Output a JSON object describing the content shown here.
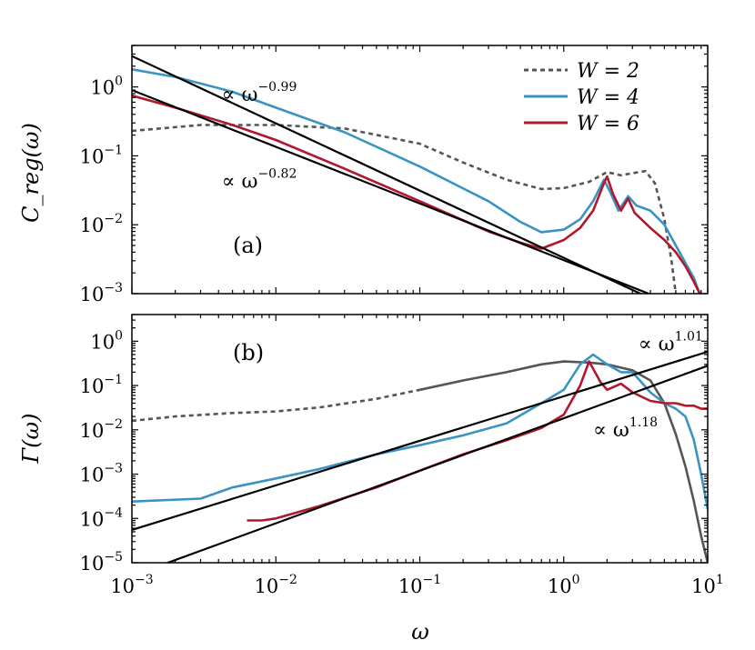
{
  "chart_data": [
    {
      "type": "line",
      "panel_label": "(a)",
      "ylabel": "C_reg(ω)",
      "xlabel": "",
      "xscale": "log",
      "yscale": "log",
      "xlim": [
        0.001,
        10
      ],
      "ylim": [
        0.001,
        4
      ],
      "x_ticks": [
        {
          "base": "10",
          "exp": "−3"
        },
        {
          "base": "10",
          "exp": "−2"
        },
        {
          "base": "10",
          "exp": "−1"
        },
        {
          "base": "10",
          "exp": "0"
        },
        {
          "base": "10",
          "exp": "1"
        }
      ],
      "y_ticks": [
        {
          "base": "10",
          "exp": "0"
        },
        {
          "base": "10",
          "exp": "−1"
        },
        {
          "base": "10",
          "exp": "−2"
        },
        {
          "base": "10",
          "exp": "−3"
        }
      ],
      "legend": {
        "placement": "top-right",
        "entries": [
          {
            "label": "W = 2",
            "color": "#555555",
            "style": "dashed"
          },
          {
            "label": "W = 4",
            "color": "#3a93c3",
            "style": "solid"
          },
          {
            "label": "W = 6",
            "color": "#b2182b",
            "style": "solid"
          }
        ]
      },
      "series": [
        {
          "name": "W = 2",
          "color": "#555555",
          "style": "dashed",
          "x": [
            0.001,
            0.003,
            0.01,
            0.03,
            0.1,
            0.2,
            0.4,
            0.7,
            1.0,
            1.5,
            2.0,
            2.5,
            3.0,
            3.7,
            4.3,
            5.0,
            5.6,
            6.0
          ],
          "y": [
            0.23,
            0.28,
            0.28,
            0.25,
            0.15,
            0.08,
            0.045,
            0.033,
            0.034,
            0.042,
            0.058,
            0.052,
            0.056,
            0.06,
            0.04,
            0.012,
            0.003,
            0.001
          ]
        },
        {
          "name": "W = 4",
          "color": "#3a93c3",
          "style": "solid",
          "x": [
            0.001,
            0.002,
            0.005,
            0.01,
            0.03,
            0.1,
            0.3,
            0.5,
            0.7,
            1.0,
            1.3,
            1.6,
            1.9,
            2.1,
            2.4,
            2.8,
            3.2,
            4.0,
            5.0,
            6.0,
            7.0,
            8.0,
            8.8
          ],
          "y": [
            1.8,
            1.4,
            0.85,
            0.5,
            0.22,
            0.07,
            0.022,
            0.011,
            0.0078,
            0.0085,
            0.012,
            0.022,
            0.045,
            0.03,
            0.016,
            0.026,
            0.019,
            0.016,
            0.01,
            0.005,
            0.0028,
            0.0017,
            0.001
          ]
        },
        {
          "name": "W = 6",
          "color": "#b2182b",
          "style": "solid",
          "x": [
            0.001,
            0.002,
            0.005,
            0.01,
            0.03,
            0.1,
            0.3,
            0.5,
            0.7,
            1.0,
            1.3,
            1.6,
            1.9,
            2.0,
            2.2,
            2.5,
            2.8,
            3.1,
            4.0,
            5.0,
            6.0,
            7.0,
            8.0,
            8.8
          ],
          "y": [
            0.75,
            0.5,
            0.28,
            0.17,
            0.065,
            0.022,
            0.008,
            0.0055,
            0.0045,
            0.006,
            0.009,
            0.016,
            0.04,
            0.05,
            0.028,
            0.016,
            0.024,
            0.015,
            0.009,
            0.006,
            0.004,
            0.0025,
            0.0015,
            0.001
          ]
        },
        {
          "name": "",
          "color": "#000000",
          "style": "solid",
          "fit": true,
          "x": [
            0.001,
            10
          ],
          "y": [
            2.8,
            0.00035
          ]
        },
        {
          "name": "",
          "color": "#000000",
          "style": "solid",
          "fit": true,
          "x": [
            0.001,
            10
          ],
          "y": [
            0.9,
            0.00046
          ]
        }
      ],
      "annotations": [
        {
          "text": "∝ ω",
          "exp": "−0.99",
          "x": 0.0042,
          "y": 0.8
        },
        {
          "text": "∝ ω",
          "exp": "−0.82",
          "x": 0.0042,
          "y": 0.044
        }
      ]
    },
    {
      "type": "line",
      "panel_label": "(b)",
      "ylabel": "Γ(ω)",
      "xlabel": "ω",
      "xscale": "log",
      "yscale": "log",
      "xlim": [
        0.001,
        10
      ],
      "ylim": [
        1e-05,
        4
      ],
      "x_ticks": [
        {
          "base": "10",
          "exp": "−3"
        },
        {
          "base": "10",
          "exp": "−2"
        },
        {
          "base": "10",
          "exp": "−1"
        },
        {
          "base": "10",
          "exp": "0"
        },
        {
          "base": "10",
          "exp": "1"
        }
      ],
      "y_ticks": [
        {
          "base": "10",
          "exp": "0"
        },
        {
          "base": "10",
          "exp": "−1"
        },
        {
          "base": "10",
          "exp": "−2"
        },
        {
          "base": "10",
          "exp": "−3"
        },
        {
          "base": "10",
          "exp": "−4"
        },
        {
          "base": "10",
          "exp": "−5"
        }
      ],
      "series": [
        {
          "name": "W = 2",
          "color": "#555555",
          "style": "dashed-to-solid",
          "x": [
            0.001,
            0.002,
            0.005,
            0.01,
            0.02,
            0.05,
            0.1,
            0.2,
            0.4,
            0.7,
            1.0,
            1.5,
            2.0,
            3.0,
            4.0,
            5.0,
            6.0,
            7.0,
            8.0,
            9.0,
            10.0
          ],
          "y": [
            0.016,
            0.02,
            0.024,
            0.026,
            0.032,
            0.05,
            0.08,
            0.13,
            0.2,
            0.3,
            0.35,
            0.33,
            0.3,
            0.22,
            0.13,
            0.04,
            0.008,
            0.0015,
            0.00025,
            4e-05,
            1e-05
          ]
        },
        {
          "name": "W = 4",
          "color": "#3a93c3",
          "style": "solid",
          "x": [
            0.001,
            0.003,
            0.005,
            0.01,
            0.02,
            0.05,
            0.1,
            0.2,
            0.4,
            0.7,
            1.0,
            1.3,
            1.6,
            2.0,
            2.5,
            3.0,
            4.0,
            5.0,
            6.0,
            7.0,
            8.0,
            9.0,
            10.0
          ],
          "y": [
            0.00024,
            0.00028,
            0.0005,
            0.0008,
            0.0013,
            0.0028,
            0.0045,
            0.0075,
            0.014,
            0.04,
            0.08,
            0.3,
            0.5,
            0.3,
            0.2,
            0.2,
            0.07,
            0.04,
            0.03,
            0.02,
            0.006,
            0.001,
            0.00016
          ]
        },
        {
          "name": "W = 6",
          "color": "#b2182b",
          "style": "solid",
          "x": [
            0.0063,
            0.008,
            0.01,
            0.02,
            0.05,
            0.1,
            0.2,
            0.4,
            0.7,
            1.0,
            1.3,
            1.5,
            1.8,
            2.0,
            2.5,
            3.0,
            4.0,
            5.0,
            6.0,
            7.0,
            8.0,
            9.0,
            10.0
          ],
          "y": [
            9e-05,
            9e-05,
            0.0001,
            0.00019,
            0.0005,
            0.0012,
            0.0028,
            0.0058,
            0.011,
            0.022,
            0.1,
            0.35,
            0.12,
            0.08,
            0.11,
            0.07,
            0.045,
            0.04,
            0.04,
            0.035,
            0.035,
            0.03,
            0.03
          ]
        },
        {
          "name": "",
          "color": "#000000",
          "style": "solid",
          "fit": true,
          "x": [
            0.001,
            10
          ],
          "y": [
            5.5e-05,
            0.58
          ]
        },
        {
          "name": "",
          "color": "#000000",
          "style": "solid",
          "fit": true,
          "x": [
            0.0017,
            10
          ],
          "y": [
            9.5e-06,
            0.28
          ]
        }
      ],
      "annotations": [
        {
          "text": "∝ ω",
          "exp": "1.01",
          "x": 3.3,
          "y": 0.9
        },
        {
          "text": "∝ ω",
          "exp": "1.18",
          "x": 1.6,
          "y": 0.0105
        }
      ]
    }
  ]
}
